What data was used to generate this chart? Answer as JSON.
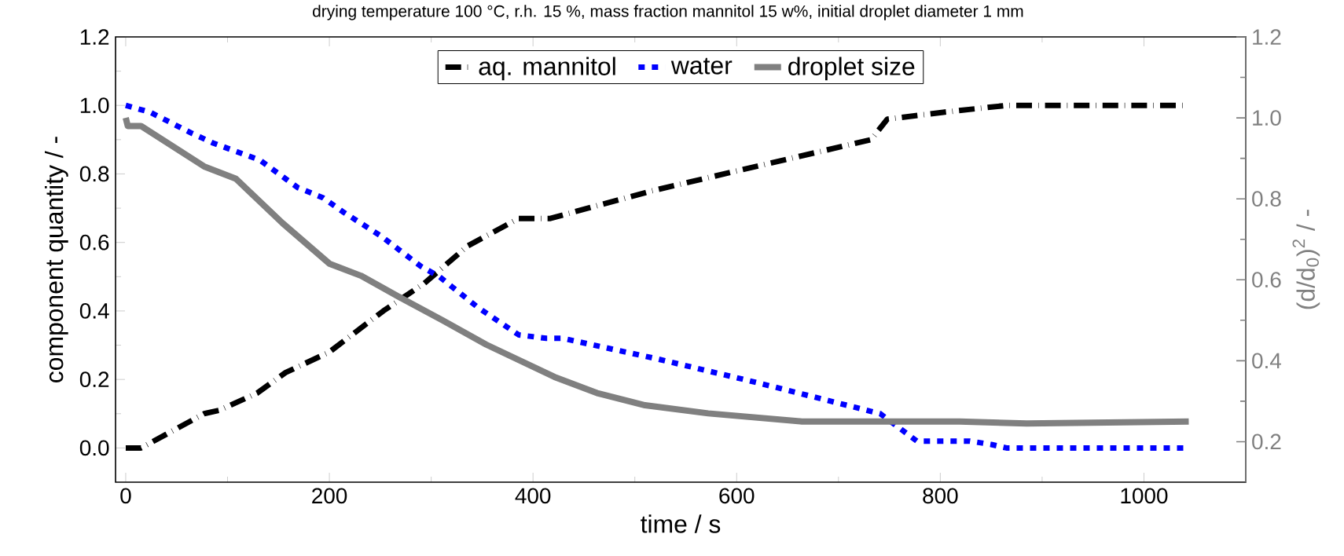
{
  "chart_data": {
    "type": "line",
    "title": "drying temperature 100 °C, r.h. 15 %, mass fraction mannitol 15 w%, initial droplet diameter 1 mm",
    "xlabel": "time / s",
    "ylabel": "component quantity / -",
    "y2label": "(d/d$_{0}$)$^{2}$ / -",
    "xlim": [
      -10,
      1100
    ],
    "xticks": [
      0,
      200,
      400,
      600,
      800,
      1000
    ],
    "ylim": [
      -0.1,
      1.2
    ],
    "yticks": [
      {
        "value": 0,
        "label": "0.0"
      },
      0.2,
      0.4,
      0.6,
      0.8,
      {
        "value": 1,
        "label": "1.0"
      },
      1.2
    ],
    "y2lim": [
      0.1,
      1.2
    ],
    "y2ticks": [
      0.2,
      0.4,
      0.6,
      0.8,
      {
        "value": 1,
        "label": "1.0"
      },
      1.2
    ],
    "grid": false,
    "legend": "top",
    "series": [
      {
        "name": "aq. mannitol",
        "color": "#000000",
        "line_style": "dashed",
        "x": [
          0,
          15,
          40,
          77,
          92,
          129,
          157,
          200,
          253,
          293,
          336,
          386,
          417,
          516,
          602,
          732,
          748,
          803,
          865,
          1040
        ],
        "values": [
          0,
          0,
          0.04,
          0.1,
          0.11,
          0.16,
          0.22,
          0.28,
          0.4,
          0.48,
          0.59,
          0.67,
          0.67,
          0.75,
          0.81,
          0.9,
          0.96,
          0.98,
          1.0,
          1.0
        ]
      },
      {
        "name": "water",
        "color": "#0000ff",
        "line_style": "dotted",
        "x": [
          0,
          24,
          64,
          86,
          132,
          169,
          194,
          213,
          250,
          290,
          308,
          346,
          386,
          413,
          429,
          522,
          621,
          741,
          759,
          777,
          829,
          850,
          865,
          1040
        ],
        "values": [
          1.0,
          0.98,
          0.92,
          0.89,
          0.84,
          0.76,
          0.73,
          0.69,
          0.62,
          0.53,
          0.5,
          0.41,
          0.33,
          0.32,
          0.32,
          0.26,
          0.19,
          0.1,
          0.06,
          0.02,
          0.02,
          0.01,
          0,
          0
        ]
      },
      {
        "name": "droplet size",
        "color": "#808080",
        "line_style": "solid",
        "axis": "y2",
        "x": [
          0,
          2,
          15,
          46,
          77,
          108,
          154,
          200,
          231,
          274,
          311,
          354,
          421,
          463,
          510,
          572,
          664,
          726,
          819,
          885,
          1044
        ],
        "values": [
          1.0,
          0.98,
          0.98,
          0.93,
          0.88,
          0.85,
          0.74,
          0.64,
          0.61,
          0.55,
          0.5,
          0.44,
          0.36,
          0.32,
          0.29,
          0.27,
          0.25,
          0.25,
          0.25,
          0.245,
          0.25
        ]
      }
    ]
  }
}
